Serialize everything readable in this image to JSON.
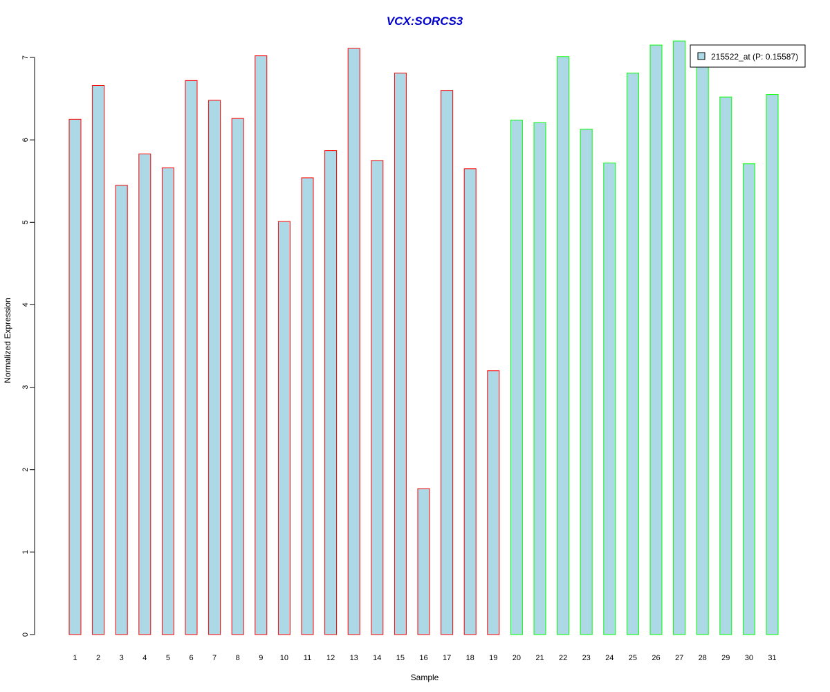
{
  "chart_data": {
    "type": "bar",
    "title": "VCX:SORCS3",
    "xlabel": "Sample",
    "ylabel": "Normalized Expression",
    "ylim": [
      0,
      7
    ],
    "yticks": [
      0,
      1,
      2,
      3,
      4,
      5,
      6,
      7
    ],
    "grid": false,
    "legend_position": "top-right",
    "categories": [
      "1",
      "2",
      "3",
      "4",
      "5",
      "6",
      "7",
      "8",
      "9",
      "10",
      "11",
      "12",
      "13",
      "14",
      "15",
      "16",
      "17",
      "18",
      "19",
      "20",
      "21",
      "22",
      "23",
      "24",
      "25",
      "26",
      "27",
      "28",
      "29",
      "30",
      "31"
    ],
    "series": [
      {
        "name": "215522_at (P: 0.15587)",
        "values": [
          6.25,
          6.66,
          5.45,
          5.83,
          5.66,
          6.72,
          6.48,
          6.26,
          7.02,
          5.01,
          5.54,
          5.87,
          7.11,
          5.75,
          6.81,
          1.77,
          6.6,
          5.65,
          3.2,
          6.24,
          6.21,
          7.01,
          6.13,
          5.72,
          6.81,
          7.15,
          7.2,
          6.92,
          6.52,
          5.71,
          6.55
        ]
      }
    ],
    "group_of_sample": [
      "a",
      "a",
      "a",
      "a",
      "a",
      "a",
      "a",
      "a",
      "a",
      "a",
      "a",
      "a",
      "a",
      "a",
      "a",
      "a",
      "a",
      "a",
      "a",
      "b",
      "b",
      "b",
      "b",
      "b",
      "b",
      "b",
      "b",
      "b",
      "b",
      "b",
      "b"
    ],
    "colors": {
      "bar_fill": "#add8e6",
      "group_a_border": "#ff0000",
      "group_b_border": "#00ff00",
      "title": "#0000cd",
      "axis": "#000000"
    }
  }
}
